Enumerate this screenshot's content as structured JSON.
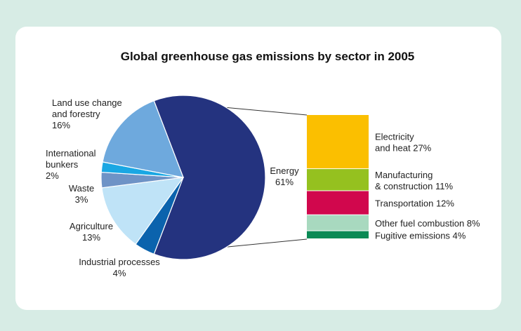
{
  "chart_data": {
    "type": "pie",
    "title": "Global greenhouse gas emissions by sector in 2005",
    "slices": [
      {
        "key": "energy",
        "lines": [
          "Energy",
          "61%"
        ],
        "value": 61,
        "color": "#24337f"
      },
      {
        "key": "industrial",
        "lines": [
          "Industrial processes",
          "4%"
        ],
        "value": 4,
        "color": "#0b63ad"
      },
      {
        "key": "agriculture",
        "lines": [
          "Agriculture",
          "13%"
        ],
        "value": 13,
        "color": "#bfe3f7"
      },
      {
        "key": "waste",
        "lines": [
          "Waste",
          "3%"
        ],
        "value": 3,
        "color": "#6e93c6"
      },
      {
        "key": "bunkers",
        "lines": [
          "International",
          "bunkers",
          "2%"
        ],
        "value": 2,
        "color": "#1aa7e3"
      },
      {
        "key": "landuse",
        "lines": [
          "Land use change",
          "and forestry",
          "16%"
        ],
        "value": 16,
        "color": "#6ea9dd"
      }
    ],
    "breakdown": {
      "of": "Energy",
      "segments": [
        {
          "key": "electricity",
          "lines": [
            "Electricity",
            "and heat 27%"
          ],
          "value": 27,
          "color": "#fbbf00"
        },
        {
          "key": "manufacturing",
          "lines": [
            "Manufacturing",
            "& construction 11%"
          ],
          "value": 11,
          "color": "#95c11f"
        },
        {
          "key": "transportation",
          "lines": [
            "Transportation 12%"
          ],
          "value": 12,
          "color": "#d1074d"
        },
        {
          "key": "otherfuel",
          "lines": [
            "Other fuel combustion 8%"
          ],
          "value": 8,
          "color": "#a8d9bf"
        },
        {
          "key": "fugitive",
          "lines": [
            "Fugitive emissions 4%"
          ],
          "value": 4,
          "color": "#0a8a55"
        }
      ]
    }
  }
}
